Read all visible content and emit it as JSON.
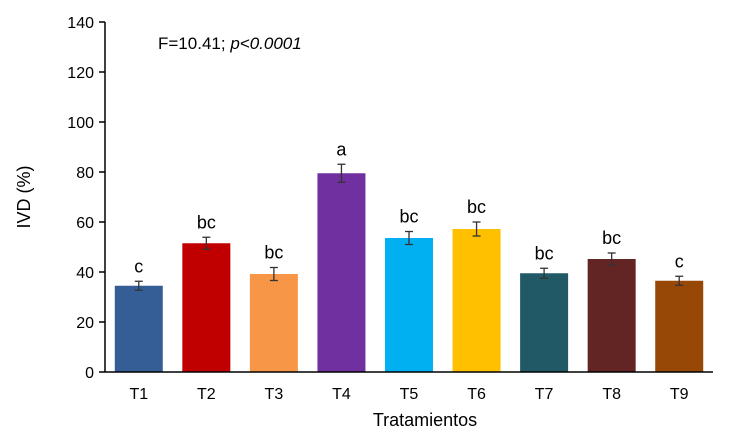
{
  "chart_data": {
    "type": "bar",
    "categories": [
      "T1",
      "T2",
      "T3",
      "T4",
      "T5",
      "T6",
      "T7",
      "T8",
      "T9"
    ],
    "values": [
      34.5,
      51.5,
      39.2,
      79.5,
      53.6,
      57.2,
      39.5,
      45.2,
      36.5
    ],
    "errors": [
      1.8,
      2.4,
      2.6,
      3.6,
      2.6,
      2.8,
      2.0,
      2.4,
      1.8
    ],
    "labels": [
      "c",
      "bc",
      "bc",
      "a",
      "bc",
      "bc",
      "bc",
      "bc",
      "c"
    ],
    "colors": [
      "#355E96",
      "#C00000",
      "#F79646",
      "#7030A0",
      "#00B0F0",
      "#FFC000",
      "#215967",
      "#632523",
      "#974706"
    ],
    "ylabel": "IVD (%)",
    "xlabel": "Tratamientos",
    "ylim": [
      0,
      140
    ],
    "yticks": [
      0,
      20,
      40,
      60,
      80,
      100,
      120,
      140
    ],
    "annotation": {
      "prefix": "F=10.41; ",
      "pvalue": "p<0.0001"
    },
    "grid": false,
    "legend": "none"
  }
}
